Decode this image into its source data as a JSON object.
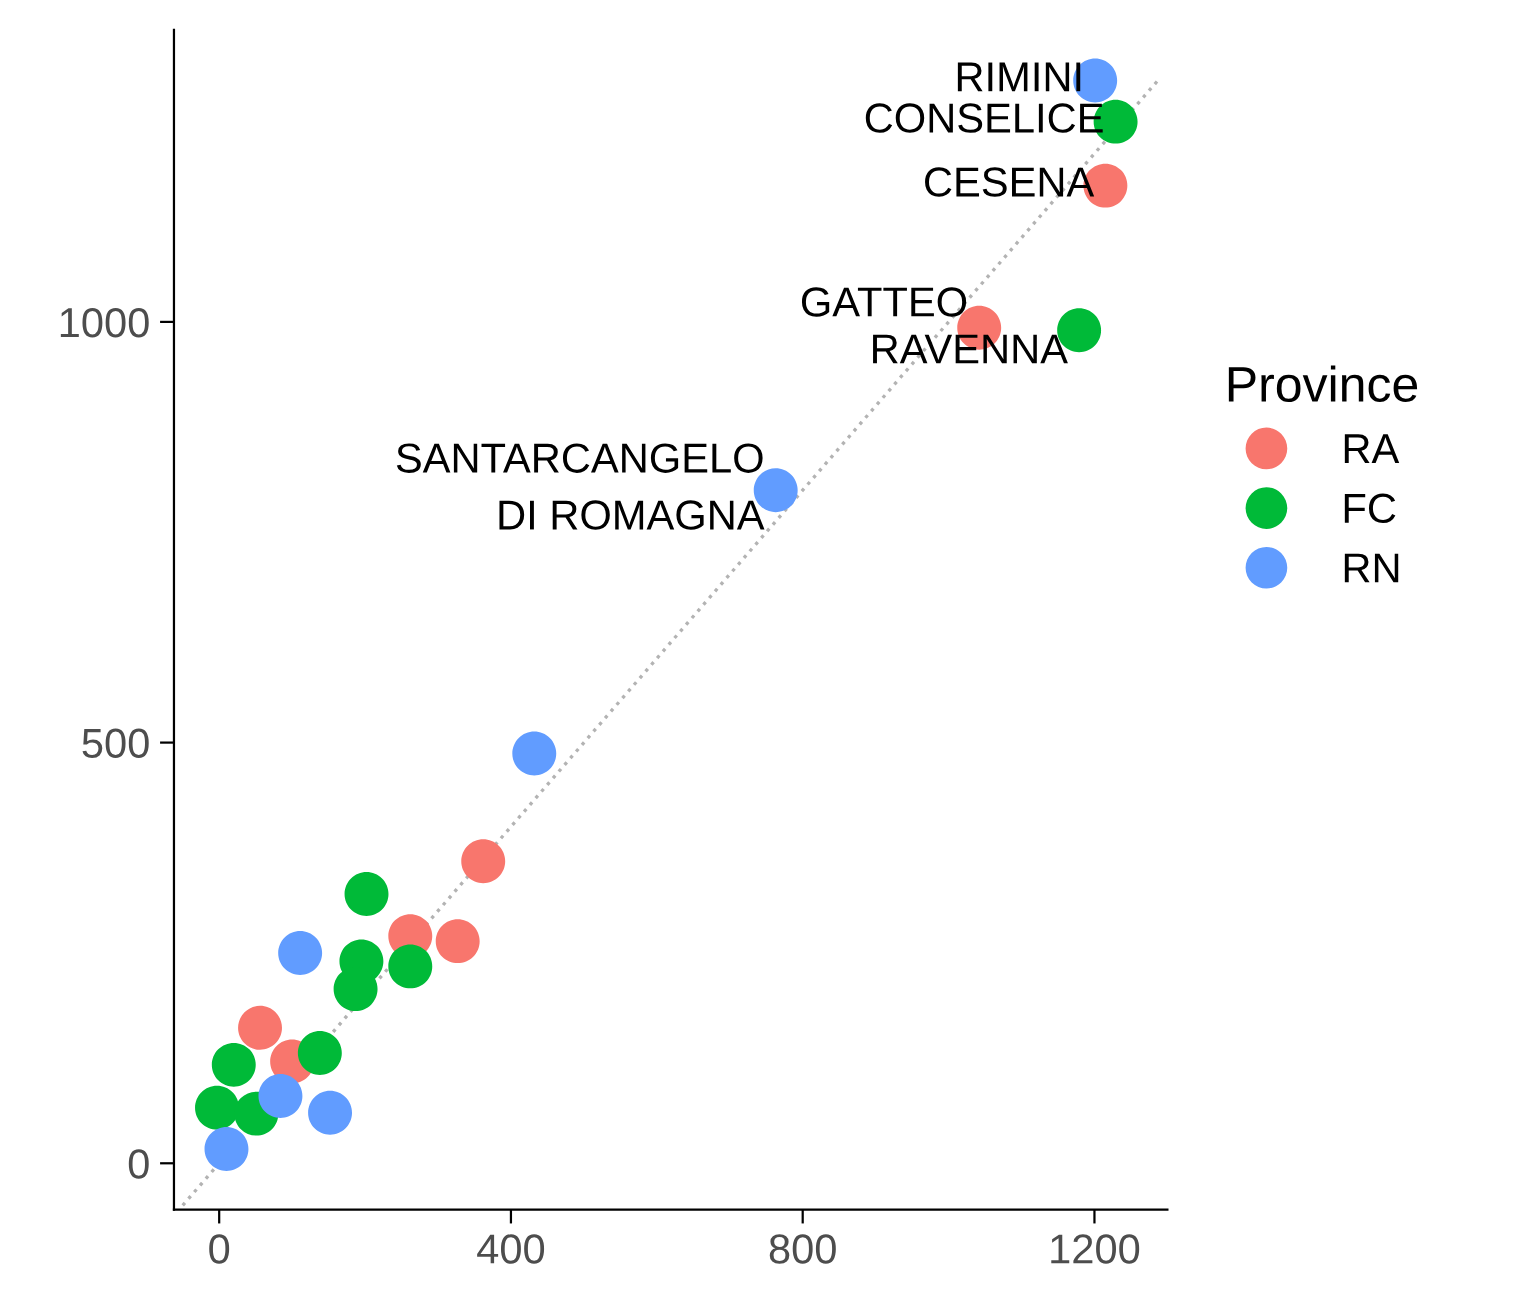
{
  "chart_data": {
    "type": "scatter",
    "legend_title": "Province",
    "legend": "right",
    "grid": false,
    "marker": "circle",
    "xlim": [
      -62,
      1300
    ],
    "ylim": [
      -55,
      1347
    ],
    "xticks": [
      0,
      400,
      800,
      1200
    ],
    "yticks": [
      0,
      500,
      1000
    ],
    "series": [
      {
        "name": "RA",
        "color": "#f8766d",
        "x": [
          1215,
          1042,
          362,
          262,
          327,
          56,
          100
        ],
        "values": [
          1162,
          993,
          359,
          270,
          264,
          161,
          121
        ]
      },
      {
        "name": "FC",
        "color": "#00ba38",
        "x": [
          1229,
          1179,
          202,
          195,
          262,
          187,
          138,
          20,
          -3,
          51
        ],
        "values": [
          1238,
          990,
          320,
          240,
          234,
          207,
          131,
          117,
          66,
          59
        ]
      },
      {
        "name": "RN",
        "color": "#619cff",
        "x": [
          1201,
          763,
          432,
          111,
          152,
          84,
          10
        ],
        "values": [
          1287,
          800,
          487,
          250,
          60,
          80,
          17
        ]
      },
      {
        "type": "line",
        "color": "#b3b3b3",
        "line_style": "dotted",
        "marker": "none",
        "x": [
          -50,
          1290
        ],
        "values": [
          -50,
          1290
        ]
      }
    ],
    "annotations": [
      {
        "text": "RIMINI",
        "x": 1201,
        "y": 1287
      },
      {
        "text": "CONSELICE",
        "x": 1229,
        "y": 1238
      },
      {
        "text": "CESENA",
        "x": 1215,
        "y": 1162
      },
      {
        "text": "GATTEO",
        "x": 1042,
        "y": 993
      },
      {
        "text": "RAVENNA",
        "x": 1179,
        "y": 990
      },
      {
        "text": "SANTARCANGELO\nDI ROMAGNA",
        "x": 763,
        "y": 800
      }
    ]
  }
}
